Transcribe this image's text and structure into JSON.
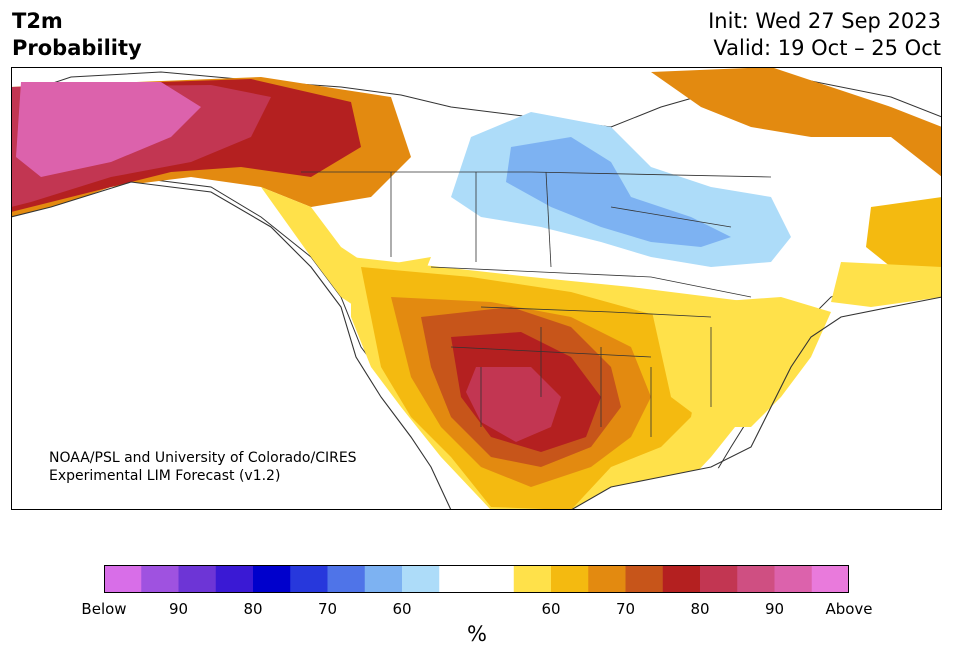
{
  "header": {
    "title": "T2m\nProbability",
    "init_line": "Init: Wed 27 Sep 2023",
    "valid_line": "Valid: 19 Oct – 25 Oct"
  },
  "credit": {
    "line1": "NOAA/PSL and University of Colorado/CIRES",
    "line2": "Experimental LIM Forecast (v1.2)"
  },
  "colorbar": {
    "colors": [
      "#d86ee8",
      "#9f52e0",
      "#6d35d6",
      "#3a19d4",
      "#0000cc",
      "#2738dc",
      "#4f74e8",
      "#7db2f2",
      "#addcf9",
      "#ffffff",
      "#ffffff",
      "#ffe14a",
      "#f4ba10",
      "#e38a10",
      "#c7551a",
      "#b42020",
      "#c23652",
      "#cf4f82",
      "#dc62ac",
      "#e97adc"
    ],
    "labels": [
      "Below",
      "90",
      "80",
      "70",
      "60",
      "60",
      "70",
      "80",
      "90",
      "Above"
    ],
    "unit": "%"
  },
  "colors": {
    "land_neutral": "#ffffff",
    "ocean": "#ffffff",
    "border": "#333333"
  }
}
